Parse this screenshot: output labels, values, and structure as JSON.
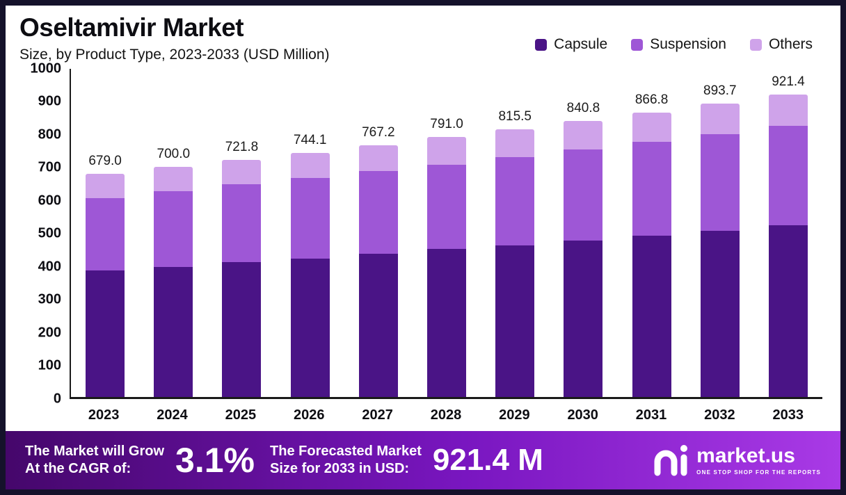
{
  "header": {
    "title": "Oseltamivir Market",
    "subtitle": "Size, by Product Type, 2023-2033 (USD Million)"
  },
  "legend": [
    {
      "label": "Capsule",
      "color": "#4a1486"
    },
    {
      "label": "Suspension",
      "color": "#9e57d6"
    },
    {
      "label": "Others",
      "color": "#cfa3ea"
    }
  ],
  "chart_data": {
    "type": "bar",
    "stacked": true,
    "title": "Oseltamivir Market Size, by Product Type, 2023-2033 (USD Million)",
    "categories": [
      "2023",
      "2024",
      "2025",
      "2026",
      "2027",
      "2028",
      "2029",
      "2030",
      "2031",
      "2032",
      "2033"
    ],
    "series": [
      {
        "name": "Capsule",
        "color": "#4a1486",
        "values": [
          385.0,
          397.0,
          410.0,
          422.0,
          436.0,
          450.0,
          462.0,
          477.0,
          492.0,
          507.0,
          522.0
        ]
      },
      {
        "name": "Suspension",
        "color": "#9e57d6",
        "values": [
          220.0,
          229.0,
          237.0,
          245.0,
          252.0,
          258.0,
          268.0,
          277.0,
          286.0,
          294.0,
          303.0
        ]
      },
      {
        "name": "Others",
        "color": "#cfa3ea",
        "values": [
          74.0,
          74.0,
          74.8,
          77.1,
          79.2,
          83.0,
          85.5,
          86.8,
          88.8,
          92.7,
          96.4
        ]
      }
    ],
    "totals": [
      679.0,
      700.0,
      721.8,
      744.1,
      767.2,
      791.0,
      815.5,
      840.8,
      866.8,
      893.7,
      921.4
    ],
    "total_labels": [
      "679.0",
      "700.0",
      "721.8",
      "744.1",
      "767.2",
      "791.0",
      "815.5",
      "840.8",
      "866.8",
      "893.7",
      "921.4"
    ],
    "ylim": [
      0,
      1000
    ],
    "yticks": [
      0,
      100,
      200,
      300,
      400,
      500,
      600,
      700,
      800,
      900,
      1000
    ],
    "grid": false,
    "legend_position": "top-right"
  },
  "footer": {
    "cagr_label_line1": "The Market will Grow",
    "cagr_label_line2": "At the CAGR of:",
    "cagr_value": "3.1%",
    "forecast_label_line1": "The Forecasted Market",
    "forecast_label_line2": "Size for 2033 in USD:",
    "forecast_value": "921.4 M",
    "brand": "market.us",
    "brand_tagline": "ONE STOP SHOP FOR THE REPORTS"
  }
}
